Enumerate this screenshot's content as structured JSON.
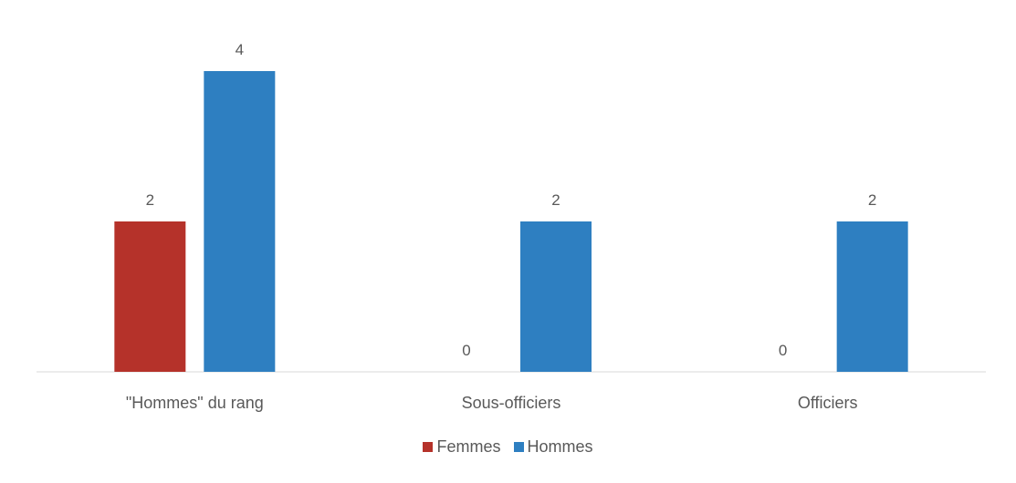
{
  "chart_data": {
    "type": "bar",
    "categories": [
      "\"Hommes\" du rang",
      "Sous-officiers",
      "Officiers"
    ],
    "series": [
      {
        "name": "Femmes",
        "values": [
          2,
          0,
          0
        ],
        "color": "#b5322a"
      },
      {
        "name": "Hommes",
        "values": [
          4,
          2,
          2
        ],
        "color": "#2e7fc1"
      }
    ],
    "ylim": [
      0,
      4
    ],
    "grid": false,
    "legend_position": "bottom",
    "data_labels": true
  }
}
